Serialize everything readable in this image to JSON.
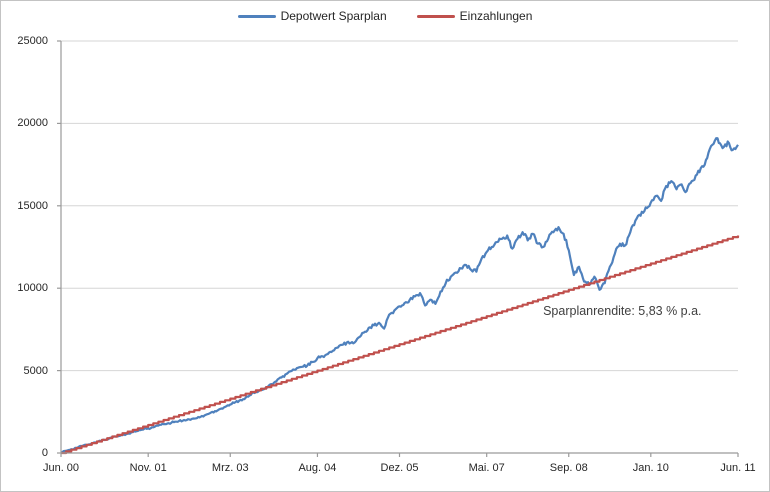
{
  "legend": {
    "items": [
      {
        "label": "Depotwert Sparplan",
        "color": "#4F81BD"
      },
      {
        "label": "Einzahlungen",
        "color": "#C0504D"
      }
    ]
  },
  "colors": {
    "gridline": "#d6d6d6",
    "axis": "#9a9a9a",
    "background": "#ffffff",
    "text": "#262626"
  },
  "chart_data": {
    "type": "line",
    "title": "",
    "xlabel": "",
    "ylabel": "",
    "x_unit": "months since Jun 2000",
    "x_tick_labels": [
      "Jun. 00",
      "Nov. 01",
      "Mrz. 03",
      "Aug. 04",
      "Dez. 05",
      "Mai. 07",
      "Sep. 08",
      "Jan. 10",
      "Jun. 11"
    ],
    "x_tick_months": [
      0,
      17,
      33,
      50,
      66,
      83,
      99,
      115,
      132
    ],
    "x_range_months": [
      0,
      132
    ],
    "ylim": [
      0,
      25000
    ],
    "y_ticks": [
      0,
      5000,
      10000,
      15000,
      20000,
      25000
    ],
    "grid": "horizontal-only",
    "legend_position": "top-center",
    "series": [
      {
        "name": "Depotwert Sparplan",
        "color": "#4F81BD",
        "sampling": "monthly",
        "values": [
          50,
          130,
          230,
          310,
          420,
          500,
          590,
          680,
          760,
          850,
          950,
          1010,
          1080,
          1170,
          1260,
          1340,
          1420,
          1490,
          1560,
          1660,
          1750,
          1810,
          1870,
          1940,
          2000,
          2040,
          2090,
          2160,
          2280,
          2410,
          2540,
          2670,
          2800,
          2950,
          3080,
          3220,
          3350,
          3520,
          3700,
          3850,
          4000,
          4180,
          4350,
          4580,
          4800,
          4990,
          5150,
          5230,
          5300,
          5520,
          5750,
          5870,
          6000,
          6200,
          6400,
          6580,
          6750,
          6650,
          7000,
          7300,
          7600,
          7750,
          7900,
          7550,
          8400,
          8650,
          8900,
          9100,
          9300,
          9500,
          9700,
          8950,
          9300,
          9050,
          9800,
          10300,
          10700,
          10950,
          11200,
          11400,
          11100,
          11000,
          11800,
          12200,
          12500,
          12800,
          13000,
          13200,
          12400,
          13000,
          13400,
          12900,
          13300,
          12700,
          12500,
          13000,
          13400,
          13700,
          13300,
          12300,
          10800,
          11300,
          10400,
          10200,
          10700,
          9900,
          10300,
          11300,
          12100,
          12700,
          12600,
          13400,
          14100,
          14400,
          14900,
          15200,
          15600,
          15300,
          16200,
          16500,
          16000,
          16300,
          15900,
          16500,
          16900,
          17400,
          17900,
          18700,
          19100,
          18500,
          18900,
          18400,
          18700
        ]
      },
      {
        "name": "Einzahlungen",
        "color": "#C0504D",
        "sampling": "monthly",
        "rule": "cumulative-deposits",
        "per_month": 100,
        "start_value": 0,
        "end_value": 13200,
        "style": "stepped"
      }
    ],
    "annotation": {
      "text": "Sparplanrendite: 5,83 % p.a.",
      "anchor_month": 94,
      "anchor_value": 8495
    }
  }
}
